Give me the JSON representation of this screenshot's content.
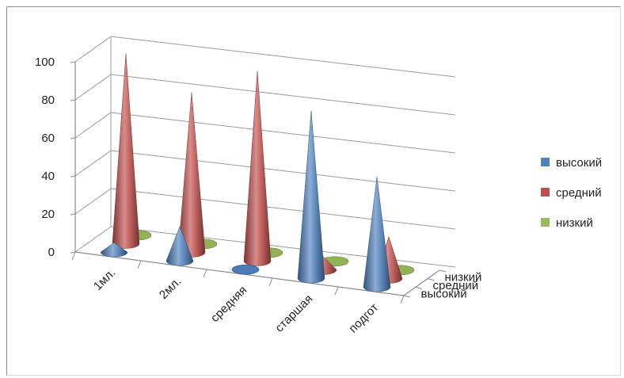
{
  "chart_data": {
    "type": "3d-cone",
    "categories": [
      "1мл.",
      "2мл.",
      "средняя",
      "старшая",
      "подгот"
    ],
    "series": [
      {
        "name": "высокий",
        "color": "#4f81bd",
        "values": [
          5,
          18,
          0,
          88,
          58
        ]
      },
      {
        "name": "средний",
        "color": "#c0504d",
        "values": [
          100,
          84,
          100,
          7,
          22
        ]
      },
      {
        "name": "низкий",
        "color": "#9bbb59",
        "values": [
          0,
          0,
          0,
          0,
          0
        ]
      }
    ],
    "yticks": [
      "0",
      "20",
      "40",
      "60",
      "80",
      "100"
    ],
    "ylim": [
      0,
      100
    ],
    "legend": [
      "высокий",
      "средний",
      "низкий"
    ],
    "legend_position": "right",
    "grid": true
  }
}
